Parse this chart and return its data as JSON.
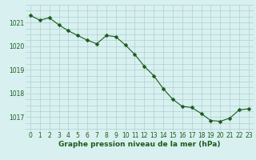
{
  "x": [
    0,
    1,
    2,
    3,
    4,
    5,
    6,
    7,
    8,
    9,
    10,
    11,
    12,
    13,
    14,
    15,
    16,
    17,
    18,
    19,
    20,
    21,
    22,
    23
  ],
  "y": [
    1021.3,
    1021.1,
    1021.2,
    1020.9,
    1020.65,
    1020.45,
    1020.25,
    1020.1,
    1020.45,
    1020.4,
    1020.05,
    1019.65,
    1019.15,
    1018.75,
    1018.2,
    1017.75,
    1017.45,
    1017.4,
    1017.15,
    1016.85,
    1016.82,
    1016.95,
    1017.3,
    1017.35
  ],
  "line_color": "#1a5c1a",
  "marker": "D",
  "markersize": 2.5,
  "linewidth": 0.8,
  "bg_color": "#d8f0f0",
  "grid_color": "#b0d0d0",
  "xlabel": "Graphe pression niveau de la mer (hPa)",
  "xlabel_fontsize": 6.5,
  "xlabel_color": "#1a5c1a",
  "yticks": [
    1017,
    1018,
    1019,
    1020,
    1021
  ],
  "xtick_labels": [
    "0",
    "1",
    "2",
    "3",
    "4",
    "5",
    "6",
    "7",
    "8",
    "9",
    "10",
    "11",
    "12",
    "13",
    "14",
    "15",
    "16",
    "17",
    "18",
    "19",
    "20",
    "21",
    "22",
    "23"
  ],
  "ylim": [
    1016.4,
    1021.7
  ],
  "xlim": [
    -0.5,
    23.5
  ],
  "tick_fontsize": 5.5,
  "tick_color": "#1a5c1a"
}
